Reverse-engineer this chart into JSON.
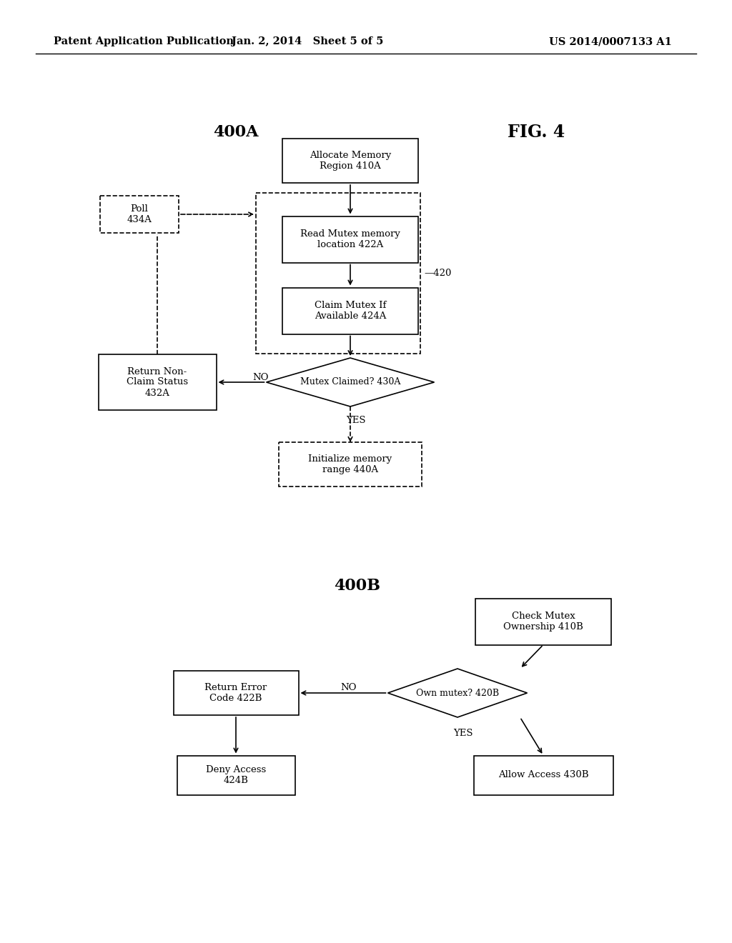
{
  "bg_color": "#ffffff",
  "header_left": "Patent Application Publication",
  "header_mid": "Jan. 2, 2014   Sheet 5 of 5",
  "header_right": "US 2014/0007133 A1"
}
